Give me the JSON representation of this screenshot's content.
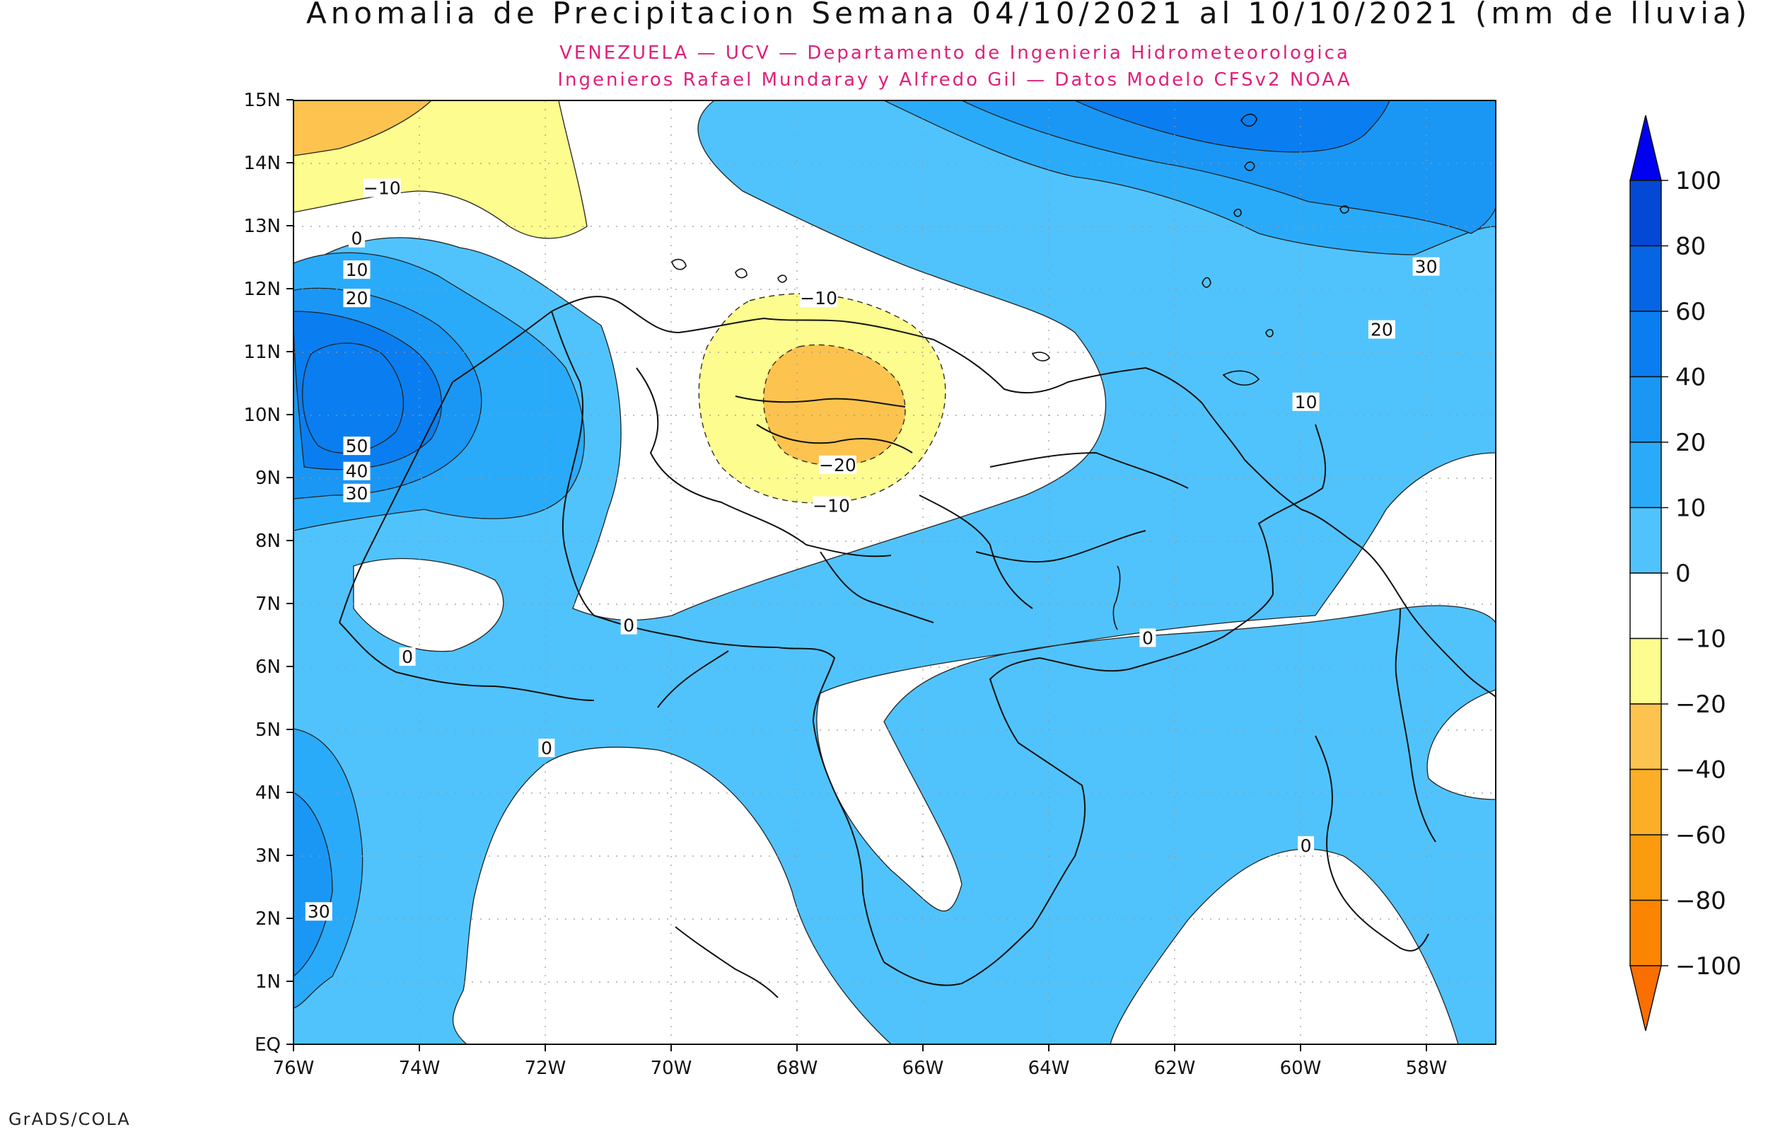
{
  "title": "Anomalia de Precipitacion Semana 04/10/2021 al 10/10/2021 (mm de lluvia)",
  "subtitle_line1": "VENEZUELA — UCV — Departamento de Ingenieria Hidrometeorologica",
  "subtitle_line2": "Ingenieros Rafael Mundaray y Alfredo Gil — Datos Modelo CFSv2 NOAA",
  "footer": "GrADS/COLA",
  "colors": {
    "subtitle": "#e0207a",
    "pos_0_10": "#50c3fd",
    "pos_10_20": "#2aabfa",
    "pos_20_40": "#1a97f5",
    "pos_40_60": "#0a7ef0",
    "pos_60_80": "#0665e5",
    "pos_80_100": "#0448d6",
    "pos_100": "#0000f0",
    "neutral": "#ffffff",
    "neg_10_20": "#fdfc8e",
    "neg_20_40": "#fcc34e",
    "neg_40_60": "#fbae26",
    "neg_60_80": "#fb9b0e",
    "neg_80_100": "#fb8500",
    "neg_100": "#fb6e00"
  },
  "map": {
    "lon_ticks": [
      "76W",
      "74W",
      "72W",
      "70W",
      "68W",
      "66W",
      "64W",
      "62W",
      "60W",
      "58W"
    ],
    "lat_ticks": [
      "EQ",
      "1N",
      "2N",
      "3N",
      "4N",
      "5N",
      "6N",
      "7N",
      "8N",
      "9N",
      "10N",
      "11N",
      "12N",
      "13N",
      "14N",
      "15N"
    ],
    "contour_labels": [
      {
        "text": "−10",
        "lon": -74.6,
        "lat": 13.6
      },
      {
        "text": "0",
        "lon": -75.0,
        "lat": 12.8
      },
      {
        "text": "10",
        "lon": -75.0,
        "lat": 12.3
      },
      {
        "text": "20",
        "lon": -75.0,
        "lat": 11.85
      },
      {
        "text": "50",
        "lon": -75.0,
        "lat": 9.5
      },
      {
        "text": "40",
        "lon": -75.0,
        "lat": 9.1
      },
      {
        "text": "30",
        "lon": -75.0,
        "lat": 8.75
      },
      {
        "text": "−10",
        "lon": -67.7,
        "lat": 11.85
      },
      {
        "text": "−20",
        "lon": -67.4,
        "lat": 9.2
      },
      {
        "text": "−10",
        "lon": -67.5,
        "lat": 8.55
      },
      {
        "text": "0",
        "lon": -70.7,
        "lat": 6.65
      },
      {
        "text": "0",
        "lon": -74.2,
        "lat": 6.15
      },
      {
        "text": "0",
        "lon": -72.0,
        "lat": 4.7
      },
      {
        "text": "0",
        "lon": -62.5,
        "lat": 6.45
      },
      {
        "text": "0",
        "lon": -60.0,
        "lat": 3.15
      },
      {
        "text": "30",
        "lon": -58.1,
        "lat": 12.35
      },
      {
        "text": "20",
        "lon": -58.8,
        "lat": 11.35
      },
      {
        "text": "10",
        "lon": -60.0,
        "lat": 10.2
      },
      {
        "text": "30",
        "lon": -75.6,
        "lat": 2.1
      }
    ]
  },
  "colorbar": {
    "labels": [
      "100",
      "80",
      "60",
      "40",
      "20",
      "10",
      "0",
      "−10",
      "−20",
      "−40",
      "−60",
      "−80",
      "−100"
    ]
  }
}
